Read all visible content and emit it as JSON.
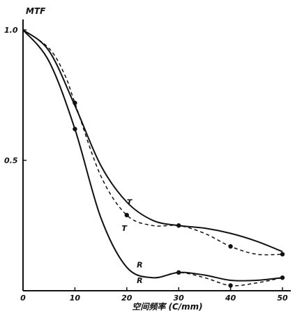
{
  "chart_data": {
    "type": "line",
    "ylabel": "MTF",
    "xlabel": "空间频率 (C/mm)",
    "xlim": [
      0,
      50
    ],
    "ylim": [
      0,
      1.0
    ],
    "x_ticks": [
      "0",
      "10",
      "20",
      "30",
      "40",
      "50"
    ],
    "y_ticks": [
      "1.0",
      "0.5"
    ],
    "grid": false,
    "series": [
      {
        "name": "T",
        "style": "solid",
        "color": "#111111",
        "x": [
          0,
          5,
          10,
          15,
          20,
          25,
          30,
          35,
          40,
          45,
          50
        ],
        "values": [
          1.0,
          0.92,
          0.71,
          0.48,
          0.34,
          0.27,
          0.25,
          0.24,
          0.22,
          0.19,
          0.15
        ]
      },
      {
        "name": "T",
        "style": "dashed",
        "color": "#111111",
        "x": [
          0,
          5,
          8,
          10,
          15,
          20,
          25,
          30,
          35,
          40,
          45,
          50
        ],
        "values": [
          1.0,
          0.93,
          0.83,
          0.72,
          0.44,
          0.29,
          0.25,
          0.25,
          0.22,
          0.17,
          0.14,
          0.14
        ],
        "markers": [
          {
            "x": 10,
            "y": 0.72
          },
          {
            "x": 20,
            "y": 0.29
          },
          {
            "x": 30,
            "y": 0.25
          },
          {
            "x": 40,
            "y": 0.17
          },
          {
            "x": 50,
            "y": 0.14
          }
        ]
      },
      {
        "name": "R",
        "style": "solid",
        "color": "#111111",
        "x": [
          0,
          5,
          10,
          15,
          20,
          25,
          30,
          35,
          40,
          45,
          50
        ],
        "values": [
          1.0,
          0.88,
          0.62,
          0.28,
          0.09,
          0.05,
          0.07,
          0.06,
          0.04,
          0.04,
          0.05
        ],
        "markers": [
          {
            "x": 10,
            "y": 0.62
          },
          {
            "x": 30,
            "y": 0.07
          },
          {
            "x": 50,
            "y": 0.05
          }
        ]
      },
      {
        "name": "R",
        "style": "dashed",
        "color": "#111111",
        "x": [
          0,
          5,
          10,
          15,
          20,
          25,
          30,
          35,
          40,
          45,
          50
        ],
        "values": [
          1.0,
          0.88,
          0.62,
          0.28,
          0.09,
          0.05,
          0.07,
          0.05,
          0.02,
          0.03,
          0.05
        ],
        "markers": [
          {
            "x": 40,
            "y": 0.02
          }
        ]
      }
    ]
  }
}
